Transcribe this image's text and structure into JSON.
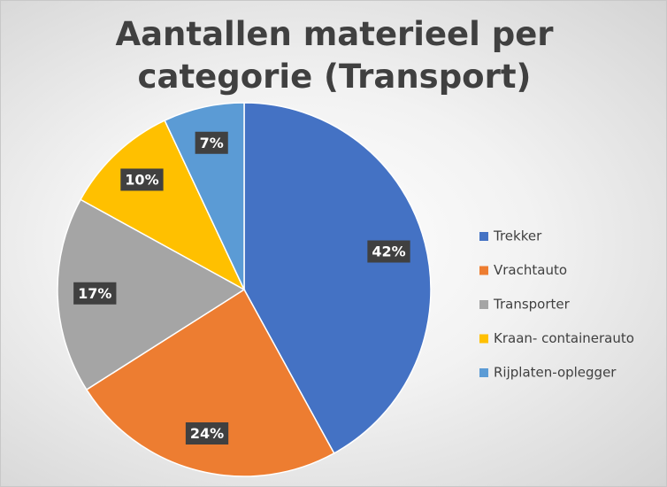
{
  "chart_data": {
    "type": "pie",
    "title": "Aantallen materieel per categorie (Transport)",
    "categories": [
      "Trekker",
      "Vrachtauto",
      "Transporter",
      "Kraan- containerauto",
      "Rijplaten-oplegger"
    ],
    "values": [
      42,
      24,
      17,
      10,
      7
    ],
    "value_labels": [
      "42%",
      "24%",
      "17%",
      "10%",
      "7%"
    ],
    "colors": [
      "#4472c4",
      "#ed7d31",
      "#a5a5a5",
      "#ffc000",
      "#5b9bd5"
    ],
    "legend": "right"
  }
}
